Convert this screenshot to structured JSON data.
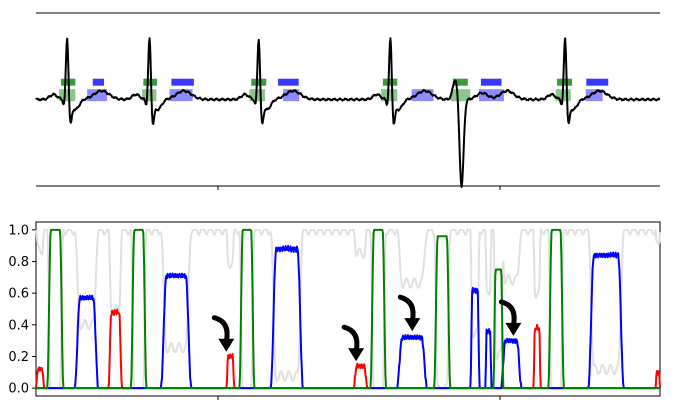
{
  "chart_data": [
    {
      "type": "line",
      "panel": "top",
      "title": "",
      "xlabel": "",
      "ylabel": "",
      "ytick_labels": [],
      "xtick_labels": [],
      "xlim": [
        0,
        1000
      ],
      "ylim": [
        -1.2,
        1.2
      ],
      "grid": false,
      "colors": {
        "signal": "#000000",
        "green_marker": "#008000",
        "blue_marker": "#0000ff"
      },
      "beats": [
        {
          "x": 50,
          "type": "normal"
        },
        {
          "x": 182,
          "type": "normal"
        },
        {
          "x": 357,
          "type": "normal"
        },
        {
          "x": 568,
          "type": "normal"
        },
        {
          "x": 680,
          "type": "ectopic"
        },
        {
          "x": 848,
          "type": "normal"
        }
      ],
      "markers_row_upper": [
        {
          "color": "green",
          "x0": 40,
          "x1": 63
        },
        {
          "color": "blue",
          "x0": 91,
          "x1": 109
        },
        {
          "color": "green",
          "x0": 172,
          "x1": 194
        },
        {
          "color": "blue",
          "x0": 217,
          "x1": 253
        },
        {
          "color": "green",
          "x0": 345,
          "x1": 369
        },
        {
          "color": "blue",
          "x0": 388,
          "x1": 421
        },
        {
          "color": "green",
          "x0": 556,
          "x1": 579
        },
        {
          "color": "green",
          "x0": 668,
          "x1": 692
        },
        {
          "color": "blue",
          "x0": 713,
          "x1": 746
        },
        {
          "color": "green",
          "x0": 835,
          "x1": 859
        },
        {
          "color": "blue",
          "x0": 882,
          "x1": 917
        }
      ],
      "markers_row_lower": [
        {
          "color": "green",
          "x0": 37,
          "x1": 63
        },
        {
          "color": "blue",
          "x0": 82,
          "x1": 114
        },
        {
          "color": "green",
          "x0": 170,
          "x1": 193
        },
        {
          "color": "blue",
          "x0": 214,
          "x1": 251
        },
        {
          "color": "green",
          "x0": 342,
          "x1": 367
        },
        {
          "color": "blue",
          "x0": 396,
          "x1": 422
        },
        {
          "color": "green",
          "x0": 553,
          "x1": 579
        },
        {
          "color": "blue",
          "x0": 602,
          "x1": 637
        },
        {
          "color": "green",
          "x0": 665,
          "x1": 696
        },
        {
          "color": "blue",
          "x0": 710,
          "x1": 750
        },
        {
          "color": "green",
          "x0": 833,
          "x1": 857
        },
        {
          "color": "blue",
          "x0": 881,
          "x1": 908
        }
      ]
    },
    {
      "type": "line",
      "panel": "bottom",
      "title": "",
      "xlabel": "",
      "ylabel": "",
      "xlim": [
        0,
        1000
      ],
      "ylim": [
        -0.05,
        1.05
      ],
      "yticks": [
        0.0,
        0.2,
        0.4,
        0.6,
        0.8,
        1.0
      ],
      "ytick_labels": [
        "0.0",
        "0.2",
        "0.4",
        "0.6",
        "0.8",
        "1.0"
      ],
      "xtick_labels": [],
      "grid": false,
      "series": [
        {
          "color": "#008000",
          "peaks": [
            [
              18,
              44,
              1.0
            ],
            [
              152,
              177,
              1.0
            ],
            [
              326,
              350,
              1.0
            ],
            [
              536,
              561,
              1.0
            ],
            [
              638,
              664,
              0.96
            ],
            [
              733,
              749,
              0.75
            ],
            [
              821,
              846,
              1.0
            ]
          ]
        },
        {
          "color": "#0000ff",
          "peaks": [
            [
              62,
              100,
              0.57
            ],
            [
              200,
              249,
              0.71
            ],
            [
              376,
              428,
              0.88
            ],
            [
              578,
              627,
              0.32
            ],
            [
              696,
              711,
              0.62
            ],
            [
              720,
              730,
              0.36
            ],
            [
              745,
              778,
              0.3
            ],
            [
              885,
              942,
              0.84
            ]
          ]
        },
        {
          "color": "#ff0000",
          "peaks": [
            [
              0,
              13,
              0.12
            ],
            [
              116,
              138,
              0.48
            ],
            [
              305,
              318,
              0.2
            ],
            [
              509,
              531,
              0.14
            ],
            [
              797,
              809,
              0.38
            ],
            [
              993,
              1000,
              0.1
            ]
          ]
        },
        {
          "color": "#e0e0e0"
        }
      ],
      "annotations": [
        {
          "type": "arrow",
          "target_x": 305,
          "target_y": 0.23
        },
        {
          "type": "arrow",
          "target_x": 513,
          "target_y": 0.17
        },
        {
          "type": "arrow",
          "target_x": 603,
          "target_y": 0.36
        },
        {
          "type": "arrow",
          "target_x": 765,
          "target_y": 0.33
        }
      ]
    }
  ]
}
